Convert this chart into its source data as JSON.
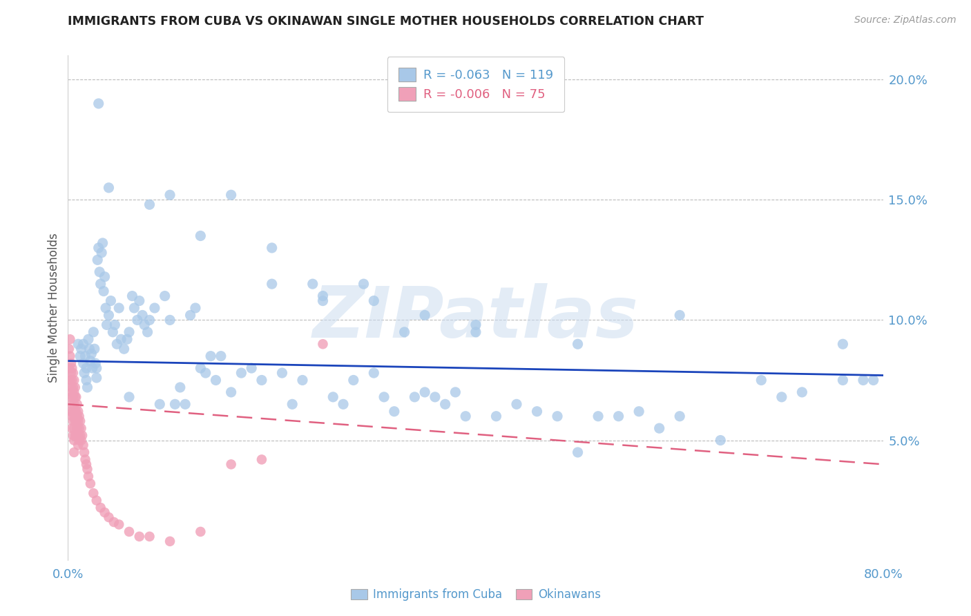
{
  "title": "IMMIGRANTS FROM CUBA VS OKINAWAN SINGLE MOTHER HOUSEHOLDS CORRELATION CHART",
  "source": "Source: ZipAtlas.com",
  "ylabel": "Single Mother Households",
  "legend_labels": [
    "Immigrants from Cuba",
    "Okinawans"
  ],
  "blue_color": "#a8c8e8",
  "blue_line_color": "#1a44bb",
  "pink_color": "#f0a0b8",
  "pink_line_color": "#e06080",
  "axis_label_color": "#5599cc",
  "watermark": "ZIPatlas",
  "watermark_color": "#ccddf0",
  "xmin": 0.0,
  "xmax": 0.8,
  "ymin": 0.0,
  "ymax": 0.21,
  "yticks": [
    0.05,
    0.1,
    0.15,
    0.2
  ],
  "ytick_labels": [
    "5.0%",
    "10.0%",
    "15.0%",
    "20.0%"
  ],
  "blue_r": -0.063,
  "blue_n": 119,
  "pink_r": -0.006,
  "pink_n": 75,
  "blue_x": [
    0.01,
    0.012,
    0.013,
    0.015,
    0.015,
    0.016,
    0.017,
    0.018,
    0.018,
    0.019,
    0.02,
    0.021,
    0.022,
    0.023,
    0.024,
    0.025,
    0.026,
    0.027,
    0.028,
    0.028,
    0.029,
    0.03,
    0.031,
    0.032,
    0.033,
    0.034,
    0.035,
    0.036,
    0.037,
    0.038,
    0.04,
    0.042,
    0.044,
    0.046,
    0.048,
    0.05,
    0.052,
    0.055,
    0.058,
    0.06,
    0.063,
    0.065,
    0.068,
    0.07,
    0.073,
    0.075,
    0.078,
    0.08,
    0.085,
    0.09,
    0.095,
    0.1,
    0.105,
    0.11,
    0.115,
    0.12,
    0.125,
    0.13,
    0.135,
    0.14,
    0.145,
    0.15,
    0.16,
    0.17,
    0.18,
    0.19,
    0.2,
    0.21,
    0.22,
    0.23,
    0.24,
    0.25,
    0.26,
    0.27,
    0.28,
    0.29,
    0.3,
    0.31,
    0.32,
    0.33,
    0.34,
    0.35,
    0.36,
    0.37,
    0.38,
    0.39,
    0.4,
    0.42,
    0.44,
    0.46,
    0.48,
    0.5,
    0.52,
    0.54,
    0.56,
    0.58,
    0.6,
    0.64,
    0.68,
    0.72,
    0.76,
    0.03,
    0.04,
    0.06,
    0.08,
    0.1,
    0.13,
    0.16,
    0.2,
    0.25,
    0.3,
    0.35,
    0.4,
    0.5,
    0.6,
    0.7,
    0.76,
    0.78,
    0.79
  ],
  "blue_y": [
    0.09,
    0.085,
    0.088,
    0.09,
    0.082,
    0.078,
    0.085,
    0.08,
    0.075,
    0.072,
    0.092,
    0.088,
    0.083,
    0.086,
    0.08,
    0.095,
    0.088,
    0.082,
    0.08,
    0.076,
    0.125,
    0.13,
    0.12,
    0.115,
    0.128,
    0.132,
    0.112,
    0.118,
    0.105,
    0.098,
    0.102,
    0.108,
    0.095,
    0.098,
    0.09,
    0.105,
    0.092,
    0.088,
    0.092,
    0.095,
    0.11,
    0.105,
    0.1,
    0.108,
    0.102,
    0.098,
    0.095,
    0.1,
    0.105,
    0.065,
    0.11,
    0.1,
    0.065,
    0.072,
    0.065,
    0.102,
    0.105,
    0.08,
    0.078,
    0.085,
    0.075,
    0.085,
    0.07,
    0.078,
    0.08,
    0.075,
    0.115,
    0.078,
    0.065,
    0.075,
    0.115,
    0.11,
    0.068,
    0.065,
    0.075,
    0.115,
    0.078,
    0.068,
    0.062,
    0.095,
    0.068,
    0.07,
    0.068,
    0.065,
    0.07,
    0.06,
    0.095,
    0.06,
    0.065,
    0.062,
    0.06,
    0.045,
    0.06,
    0.06,
    0.062,
    0.055,
    0.06,
    0.05,
    0.075,
    0.07,
    0.075,
    0.19,
    0.155,
    0.068,
    0.148,
    0.152,
    0.135,
    0.152,
    0.13,
    0.108,
    0.108,
    0.102,
    0.098,
    0.09,
    0.102,
    0.068,
    0.09,
    0.075,
    0.075
  ],
  "pink_x": [
    0.001,
    0.001,
    0.002,
    0.002,
    0.002,
    0.003,
    0.003,
    0.003,
    0.003,
    0.003,
    0.004,
    0.004,
    0.004,
    0.004,
    0.004,
    0.004,
    0.005,
    0.005,
    0.005,
    0.005,
    0.005,
    0.005,
    0.006,
    0.006,
    0.006,
    0.006,
    0.006,
    0.006,
    0.006,
    0.007,
    0.007,
    0.007,
    0.007,
    0.007,
    0.008,
    0.008,
    0.008,
    0.008,
    0.009,
    0.009,
    0.009,
    0.01,
    0.01,
    0.01,
    0.01,
    0.011,
    0.011,
    0.011,
    0.012,
    0.012,
    0.013,
    0.013,
    0.014,
    0.015,
    0.016,
    0.017,
    0.018,
    0.019,
    0.02,
    0.022,
    0.025,
    0.028,
    0.032,
    0.036,
    0.04,
    0.045,
    0.05,
    0.06,
    0.07,
    0.08,
    0.1,
    0.13,
    0.16,
    0.19,
    0.25
  ],
  "pink_y": [
    0.088,
    0.08,
    0.092,
    0.085,
    0.075,
    0.082,
    0.078,
    0.072,
    0.068,
    0.062,
    0.08,
    0.075,
    0.07,
    0.065,
    0.06,
    0.055,
    0.078,
    0.072,
    0.068,
    0.062,
    0.058,
    0.052,
    0.075,
    0.07,
    0.065,
    0.06,
    0.055,
    0.05,
    0.045,
    0.072,
    0.068,
    0.062,
    0.058,
    0.052,
    0.068,
    0.062,
    0.058,
    0.052,
    0.065,
    0.06,
    0.055,
    0.062,
    0.058,
    0.052,
    0.048,
    0.06,
    0.055,
    0.05,
    0.058,
    0.052,
    0.055,
    0.05,
    0.052,
    0.048,
    0.045,
    0.042,
    0.04,
    0.038,
    0.035,
    0.032,
    0.028,
    0.025,
    0.022,
    0.02,
    0.018,
    0.016,
    0.015,
    0.012,
    0.01,
    0.01,
    0.008,
    0.012,
    0.04,
    0.042,
    0.09
  ]
}
